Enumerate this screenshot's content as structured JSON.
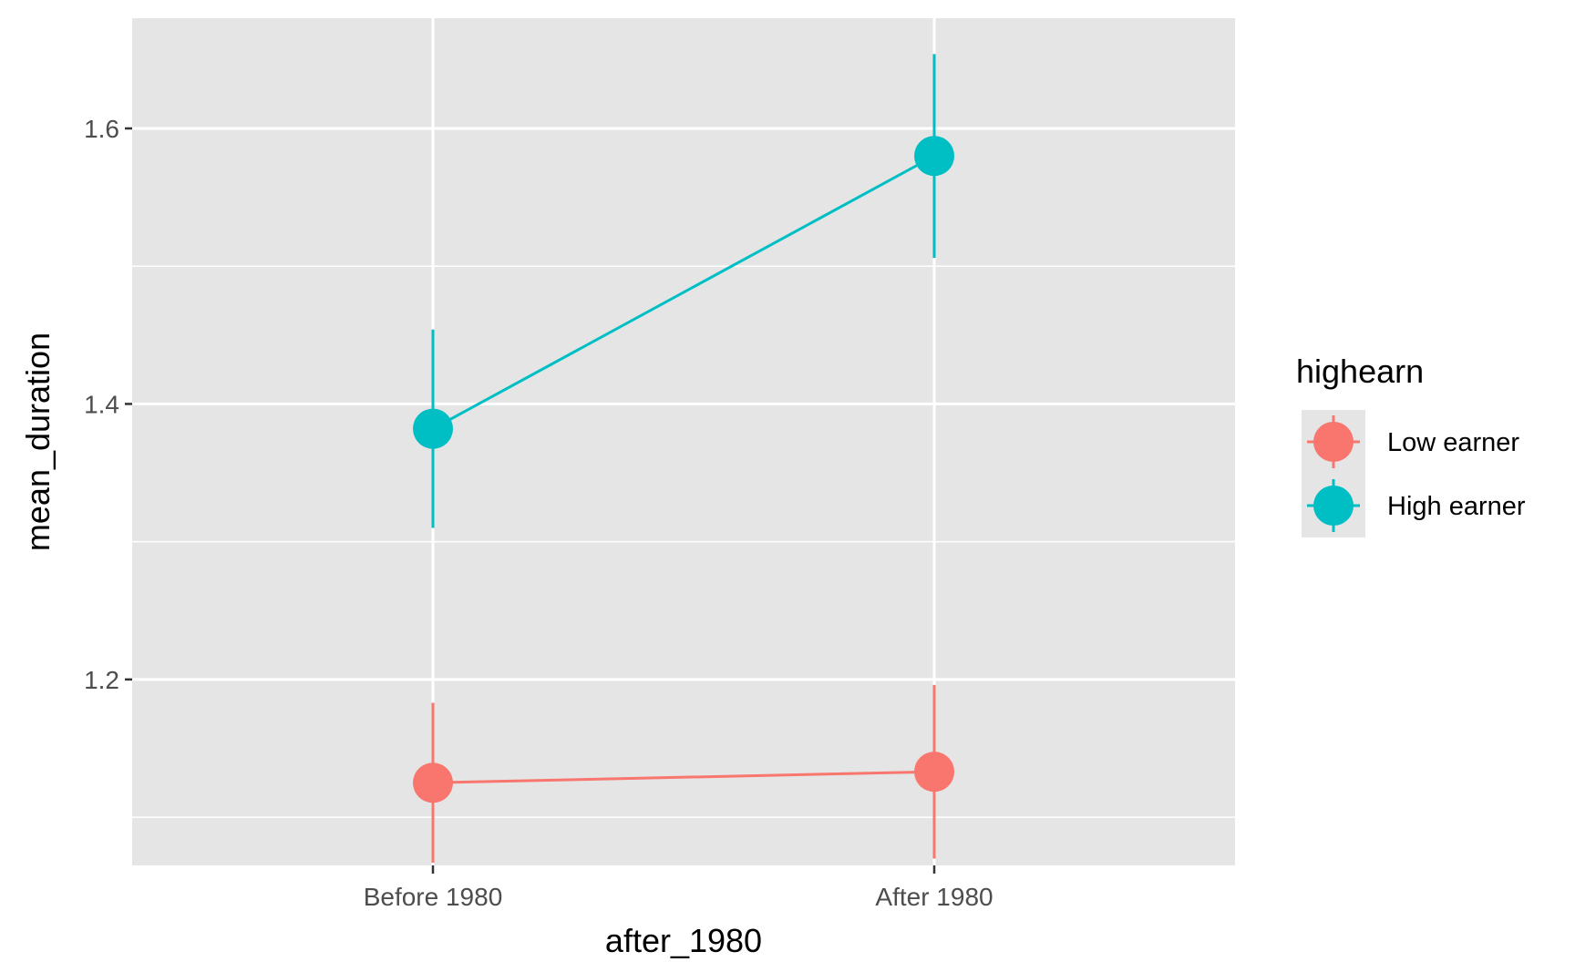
{
  "chart_data": {
    "type": "line",
    "xlabel": "after_1980",
    "ylabel": "mean_duration",
    "categories": [
      "Before 1980",
      "After 1980"
    ],
    "ylim": [
      1.065,
      1.68
    ],
    "yticks": [
      1.2,
      1.4,
      1.6
    ],
    "ytick_labels": [
      "1.2",
      "1.4",
      "1.6"
    ],
    "grid": true,
    "legend": {
      "title": "highearn",
      "position": "right"
    },
    "series": [
      {
        "name": "Low earner",
        "color": "#F8766D",
        "values": [
          1.125,
          1.133
        ],
        "error_low": [
          1.067,
          1.07
        ],
        "error_high": [
          1.183,
          1.196
        ]
      },
      {
        "name": "High earner",
        "color": "#00BFC4",
        "values": [
          1.382,
          1.58
        ],
        "error_low": [
          1.31,
          1.506
        ],
        "error_high": [
          1.454,
          1.654
        ]
      }
    ]
  }
}
